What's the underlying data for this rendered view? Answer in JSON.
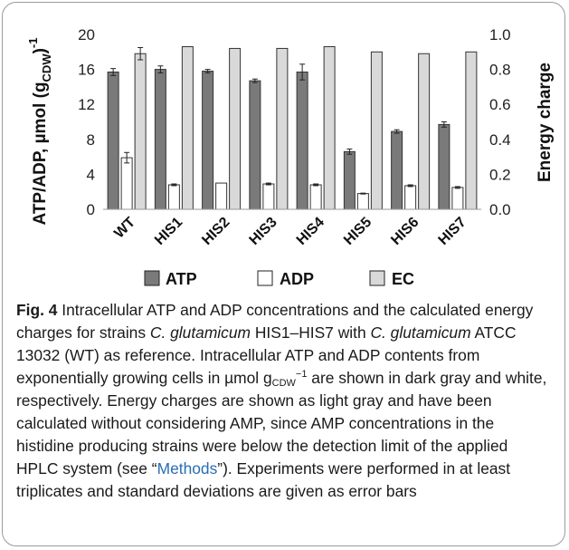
{
  "chart_data": {
    "type": "bar",
    "categories": [
      "WT",
      "HIS1",
      "HIS2",
      "HIS3",
      "HIS4",
      "HIS5",
      "HIS6",
      "HIS7"
    ],
    "series": [
      {
        "name": "ATP",
        "axis": "left",
        "color": "#7a7a7a",
        "values": [
          15.7,
          16.0,
          15.8,
          14.7,
          15.7,
          6.6,
          8.9,
          9.7
        ],
        "errors": [
          0.4,
          0.4,
          0.2,
          0.2,
          0.9,
          0.3,
          0.2,
          0.3
        ]
      },
      {
        "name": "ADP",
        "axis": "left",
        "color": "#ffffff",
        "values": [
          5.9,
          2.8,
          3.0,
          2.9,
          2.8,
          1.8,
          2.7,
          2.5
        ],
        "errors": [
          0.6,
          0.1,
          0.0,
          0.1,
          0.1,
          0.05,
          0.1,
          0.1
        ]
      },
      {
        "name": "EC",
        "axis": "right",
        "color": "#d9d9d9",
        "values": [
          0.89,
          0.93,
          0.92,
          0.92,
          0.93,
          0.9,
          0.89,
          0.9
        ],
        "errors": [
          0.035,
          0.0,
          0.0,
          0.0,
          0.0,
          0.0,
          0.0,
          0.0
        ]
      }
    ],
    "ylabel_left": "ATP/ADP, µmol (g",
    "ylabel_left_sub": "CDW",
    "ylabel_left_close": ")",
    "ylabel_left_sup": "-1",
    "ylabel_right": "Energy charge",
    "ylim_left": [
      0,
      20
    ],
    "ylim_right": [
      0,
      1.0
    ],
    "yticks_left": [
      "0",
      "4",
      "8",
      "12",
      "16",
      "20"
    ],
    "yticks_right": [
      "0.0",
      "0.2",
      "0.4",
      "0.6",
      "0.8",
      "1.0"
    ],
    "grid": false,
    "legend_position": "bottom"
  },
  "caption": {
    "fig_label": "Fig. 4",
    "t1": "  Intracellular ATP and ADP concentrations and the calculated energy charges for strains ",
    "i1": "C. glutamicum",
    "t2": " HIS1–HIS7 with ",
    "i2": "C. glutamicum",
    "t3": " ATCC 13032 (WT) as reference. Intracellular ATP and ADP contents from exponentially growing cells in µmol g",
    "sub1": "CDW",
    "sup1": "−1",
    "t4": " are shown in dark gray and white, respectively. Energy charges are shown as light gray and have been calculated without considering AMP, since AMP concentrations in the histidine producing strains were below the detection limit of the applied HPLC system (see “",
    "link": "Methods",
    "t5": "”). Experiments were performed in at least triplicates and standard deviations are given as error bars"
  }
}
